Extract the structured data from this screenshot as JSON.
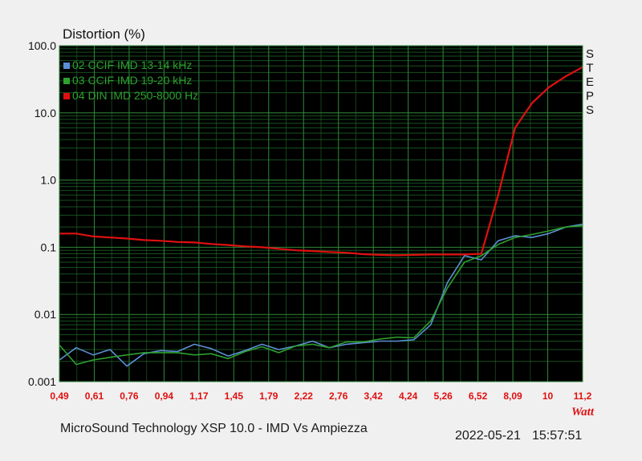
{
  "chart_data": {
    "type": "line",
    "ylabel": "Distortion (%)",
    "xlabel": "Watt",
    "y_scale": "log",
    "ylim": [
      0.001,
      100
    ],
    "y_ticks": [
      "100.0",
      "10.0",
      "1.0",
      "0.1",
      "0.01",
      "0.001"
    ],
    "x_tick_labels": [
      "0,49",
      "0,61",
      "0,76",
      "0,94",
      "1,17",
      "1,45",
      "1,79",
      "2,22",
      "2,76",
      "3,42",
      "4,24",
      "5,26",
      "6,52",
      "8,09",
      "10",
      "11,2"
    ],
    "side_label": [
      "S",
      "T",
      "E",
      "P",
      "S"
    ],
    "grid": true,
    "legend_position": "top-left",
    "plot_background": "#000000",
    "grid_color": "#1f6b2a",
    "series": [
      {
        "name": "02 CCIF IMD 13-14 kHz",
        "color": "#5b8fd4",
        "values": [
          0.0021,
          0.0032,
          0.0025,
          0.003,
          0.0017,
          0.0026,
          0.0029,
          0.0028,
          0.0036,
          0.0031,
          0.0024,
          0.0029,
          0.0036,
          0.003,
          0.0034,
          0.004,
          0.0032,
          0.0036,
          0.0038,
          0.004,
          0.004,
          0.0042,
          0.007,
          0.03,
          0.075,
          0.065,
          0.125,
          0.148,
          0.14,
          0.16,
          0.2,
          0.22
        ]
      },
      {
        "name": "03 CCIF IMD 19-20 kHz",
        "color": "#2ea02e",
        "values": [
          0.0035,
          0.0018,
          0.0021,
          0.0023,
          0.0025,
          0.0027,
          0.0027,
          0.0027,
          0.0025,
          0.0026,
          0.0022,
          0.0028,
          0.0033,
          0.0027,
          0.0034,
          0.0036,
          0.0032,
          0.0039,
          0.0039,
          0.0043,
          0.0046,
          0.0045,
          0.008,
          0.025,
          0.06,
          0.075,
          0.11,
          0.14,
          0.155,
          0.175,
          0.2,
          0.21
        ]
      },
      {
        "name": "04 DIN IMD 250-8000 Hz",
        "color": "#e01010",
        "values": [
          0.16,
          0.16,
          0.145,
          0.14,
          0.135,
          0.128,
          0.125,
          0.12,
          0.118,
          0.112,
          0.108,
          0.103,
          0.1,
          0.095,
          0.09,
          0.088,
          0.085,
          0.083,
          0.079,
          0.077,
          0.076,
          0.077,
          0.078,
          0.078,
          0.078,
          0.08,
          0.6,
          6.0,
          14.0,
          24.0,
          35.0,
          48.0
        ]
      }
    ]
  },
  "footer": {
    "title": "MicroSound Technology XSP 10.0 - IMD Vs Ampiezza",
    "date": "2022-05-21",
    "time": "15:57:51"
  }
}
